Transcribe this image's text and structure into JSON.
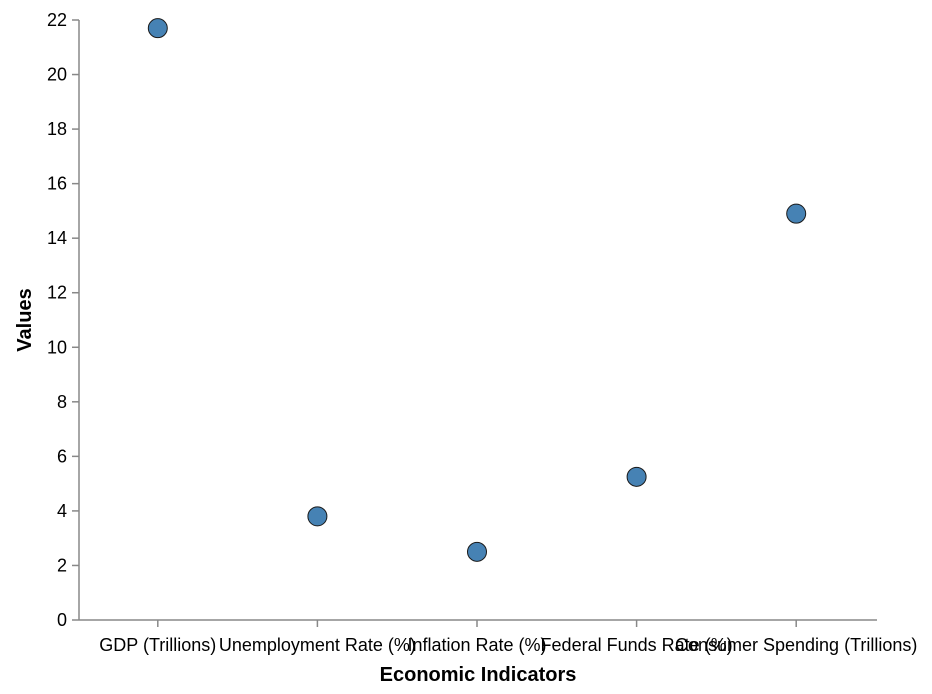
{
  "chart_data": {
    "type": "scatter",
    "title": "",
    "xlabel": "Economic Indicators",
    "ylabel": "Values",
    "categories": [
      "GDP (Trillions)",
      "Unemployment Rate (%)",
      "Inflation Rate (%)",
      "Federal Funds Rate (%)",
      "Consumer Spending (Trillions)"
    ],
    "values": [
      21.7,
      3.8,
      2.5,
      5.25,
      14.9
    ],
    "ylim": [
      0,
      22
    ],
    "yticks": [
      0,
      2,
      4,
      6,
      8,
      10,
      12,
      14,
      16,
      18,
      20,
      22
    ],
    "grid": false,
    "marker_color": "#4682b4",
    "marker_stroke": "#1a1a1a",
    "axis_color": "#888888"
  }
}
